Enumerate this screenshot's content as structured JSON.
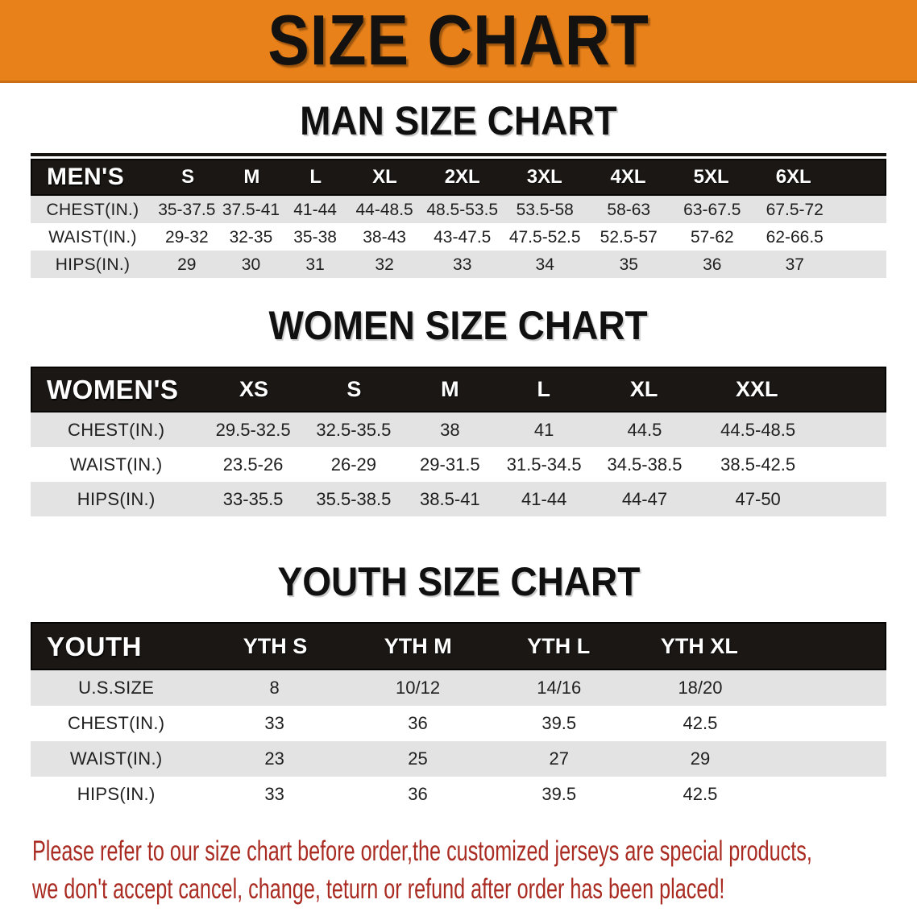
{
  "banner": {
    "title": "SIZE CHART"
  },
  "colors": {
    "banner-bg": "#e8811a",
    "banner-edge": "#c96f14",
    "band-bg": "#1a1714",
    "stripe": "#e3e3e3",
    "text-red": "#a92b22"
  },
  "sections": [
    {
      "heading": "MAN SIZE CHART",
      "header": {
        "label": "MEN'S",
        "sizes": [
          "S",
          "M",
          "L",
          "XL",
          "2XL",
          "3XL",
          "4XL",
          "5XL",
          "6XL"
        ]
      },
      "rows": [
        {
          "label": "CHEST(IN.)",
          "values": [
            "35-37.5",
            "37.5-41",
            "41-44",
            "44-48.5",
            "48.5-53.5",
            "53.5-58",
            "58-63",
            "63-67.5",
            "67.5-72"
          ]
        },
        {
          "label": "WAIST(IN.)",
          "values": [
            "29-32",
            "32-35",
            "35-38",
            "38-43",
            "43-47.5",
            "47.5-52.5",
            "52.5-57",
            "57-62",
            "62-66.5"
          ]
        },
        {
          "label": "HIPS(IN.)",
          "values": [
            "29",
            "30",
            "31",
            "32",
            "33",
            "34",
            "35",
            "36",
            "37"
          ]
        }
      ]
    },
    {
      "heading": "WOMEN SIZE CHART",
      "header": {
        "label": "WOMEN'S",
        "sizes": [
          "XS",
          "S",
          "M",
          "L",
          "XL",
          "XXL"
        ]
      },
      "rows": [
        {
          "label": "CHEST(IN.)",
          "values": [
            "29.5-32.5",
            "32.5-35.5",
            "38",
            "41",
            "44.5",
            "44.5-48.5"
          ]
        },
        {
          "label": "WAIST(IN.)",
          "values": [
            "23.5-26",
            "26-29",
            "29-31.5",
            "31.5-34.5",
            "34.5-38.5",
            "38.5-42.5"
          ]
        },
        {
          "label": "HIPS(IN.)",
          "values": [
            "33-35.5",
            "35.5-38.5",
            "38.5-41",
            "41-44",
            "44-47",
            "47-50"
          ]
        }
      ]
    },
    {
      "heading": "YOUTH SIZE CHART",
      "header": {
        "label": "YOUTH",
        "sizes": [
          "YTH S",
          "YTH M",
          "YTH L",
          "YTH XL"
        ]
      },
      "rows": [
        {
          "label": "U.S.SIZE",
          "values": [
            "8",
            "10/12",
            "14/16",
            "18/20"
          ]
        },
        {
          "label": "CHEST(IN.)",
          "values": [
            "33",
            "36",
            "39.5",
            "42.5"
          ]
        },
        {
          "label": "WAIST(IN.)",
          "values": [
            "23",
            "25",
            "27",
            "29"
          ]
        },
        {
          "label": "HIPS(IN.)",
          "values": [
            "33",
            "36",
            "39.5",
            "42.5"
          ]
        }
      ]
    }
  ],
  "disclaimer": {
    "line1": "Please refer to our size chart before order,the customized jerseys are special products,",
    "line2": "we don't accept cancel, change, teturn or refund after order has been placed!"
  }
}
